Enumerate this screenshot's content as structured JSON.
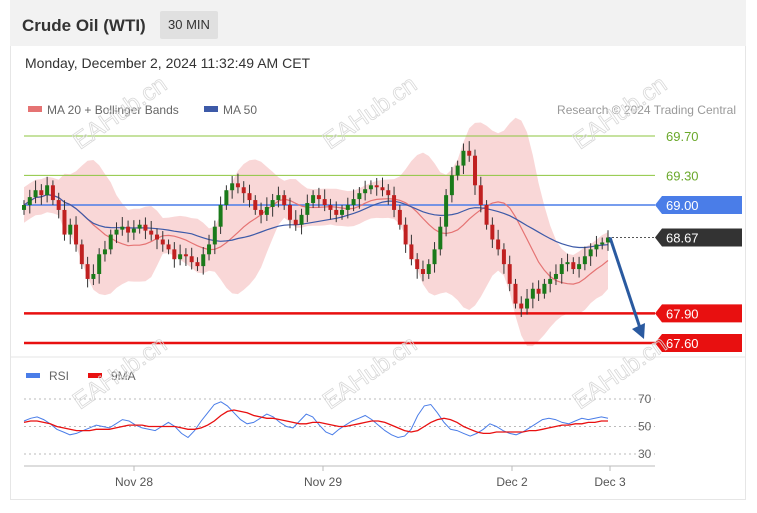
{
  "header": {
    "title": "Crude Oil (WTI)",
    "timeframe": "30 MIN"
  },
  "subheader": {
    "datetime": "Monday, December 2, 2024 11:32:49 AM CET"
  },
  "legend": {
    "ma20": "MA 20 + Bollinger Bands",
    "ma50": "MA 50",
    "rsi": "RSI",
    "ma9": "9MA"
  },
  "credit": "Research © 2024 Trading Central",
  "watermark": "EAHub.cn",
  "colors": {
    "up": "#1a7a1a",
    "down": "#c02020",
    "ma20": "#e57373",
    "ma50": "#3d5aa8",
    "band": "#f8d0d0",
    "support": "#e81010",
    "resistance": "#8dc63f",
    "pivot": "#4a7de8",
    "last": "#333333",
    "arrow": "#2a5aa0",
    "rsi": "#4a7de8",
    "ma9": "#e81010"
  },
  "chart_data": {
    "type": "candlestick",
    "x_ticks": [
      "Nov 28",
      "Nov 29",
      "Dec 2",
      "Dec 3"
    ],
    "y_range": [
      67.45,
      69.85
    ],
    "levels": [
      {
        "value": 69.7,
        "label": "69.70",
        "kind": "resistance"
      },
      {
        "value": 69.3,
        "label": "69.30",
        "kind": "resistance"
      },
      {
        "value": 69.0,
        "label": "69.00",
        "kind": "pivot"
      },
      {
        "value": 67.9,
        "label": "67.90",
        "kind": "support"
      },
      {
        "value": 67.6,
        "label": "67.60",
        "kind": "support"
      }
    ],
    "last_price": {
      "value": 68.67,
      "label": "68.67"
    },
    "projection": {
      "from": 68.67,
      "to": 67.6
    },
    "close": [
      69.0,
      69.08,
      69.15,
      69.1,
      69.2,
      69.05,
      68.95,
      68.7,
      68.8,
      68.6,
      68.4,
      68.25,
      68.3,
      68.5,
      68.55,
      68.7,
      68.75,
      68.78,
      68.72,
      68.76,
      68.8,
      68.74,
      68.7,
      68.65,
      68.6,
      68.55,
      68.45,
      68.5,
      68.48,
      68.42,
      68.38,
      68.5,
      68.6,
      68.78,
      69.0,
      69.15,
      69.22,
      69.18,
      69.12,
      69.05,
      68.95,
      68.9,
      68.98,
      69.05,
      69.1,
      69.0,
      68.85,
      68.8,
      68.9,
      69.02,
      69.1,
      69.06,
      69.0,
      68.95,
      68.9,
      68.95,
      69.0,
      69.06,
      69.12,
      69.16,
      69.2,
      69.18,
      69.15,
      69.1,
      68.95,
      68.8,
      68.6,
      68.45,
      68.35,
      68.3,
      68.4,
      68.55,
      68.78,
      69.1,
      69.3,
      69.4,
      69.55,
      69.5,
      69.2,
      69.0,
      68.8,
      68.65,
      68.55,
      68.4,
      68.2,
      68.0,
      67.95,
      68.05,
      68.15,
      68.1,
      68.2,
      68.25,
      68.3,
      68.4,
      68.42,
      68.35,
      68.4,
      68.48,
      68.55,
      68.6,
      68.62,
      68.67
    ],
    "open_start": 68.95,
    "rsi": {
      "levels": [
        70,
        50,
        30
      ],
      "range": [
        22,
        78
      ],
      "rsi": [
        54,
        56,
        57,
        55,
        52,
        48,
        46,
        44,
        45,
        47,
        49,
        51,
        50,
        49,
        52,
        55,
        54,
        51,
        49,
        48,
        47,
        50,
        53,
        50,
        45,
        42,
        47,
        54,
        60,
        66,
        68,
        65,
        60,
        55,
        52,
        53,
        56,
        59,
        57,
        53,
        50,
        49,
        54,
        59,
        57,
        51,
        46,
        44,
        48,
        51,
        54,
        56,
        58,
        55,
        51,
        47,
        44,
        42,
        43,
        48,
        58,
        65,
        66,
        60,
        53,
        48,
        47,
        45,
        43,
        45,
        48,
        52,
        50,
        47,
        45,
        44,
        46,
        49,
        52,
        55,
        56,
        55,
        53,
        52,
        54,
        56,
        55,
        56,
        57,
        56
      ],
      "ma9": [
        53,
        54,
        54,
        53,
        52,
        50,
        49,
        48,
        47,
        47,
        47,
        48,
        48,
        48,
        49,
        50,
        51,
        51,
        51,
        50,
        50,
        50,
        50,
        50,
        49,
        48,
        48,
        49,
        51,
        54,
        58,
        61,
        62,
        61,
        60,
        58,
        57,
        56,
        56,
        55,
        54,
        53,
        52,
        52,
        53,
        53,
        52,
        51,
        50,
        50,
        51,
        52,
        53,
        54,
        54,
        53,
        51,
        49,
        47,
        46,
        47,
        50,
        53,
        55,
        56,
        55,
        53,
        50,
        48,
        46,
        45,
        45,
        46,
        46,
        46,
        46,
        46,
        47,
        47,
        48,
        49,
        50,
        51,
        51,
        52,
        52,
        53,
        53,
        54,
        54
      ]
    }
  }
}
